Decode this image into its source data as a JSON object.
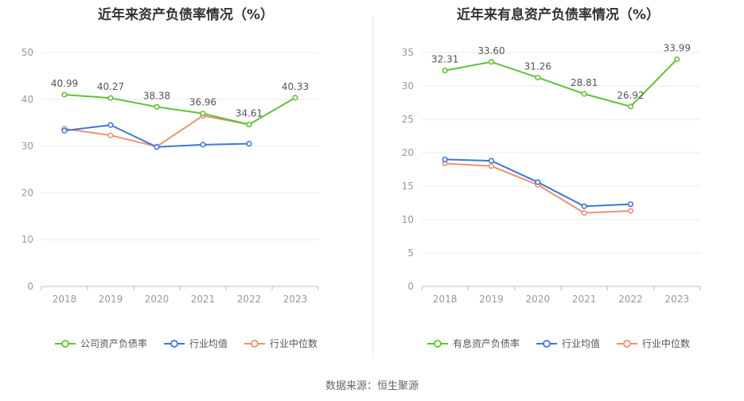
{
  "source": "数据来源：恒生聚源",
  "chart_data": [
    {
      "type": "line",
      "title": "近年来资产负债率情况（%）",
      "x": [
        "2018",
        "2019",
        "2020",
        "2021",
        "2022",
        "2023"
      ],
      "ylim": [
        0,
        50
      ],
      "yticks": [
        0,
        10,
        20,
        30,
        40,
        50
      ],
      "grid": true,
      "legend_position": "bottom",
      "series": [
        {
          "name": "公司资产负债率",
          "color": "#5cc433",
          "values": [
            40.99,
            40.27,
            38.38,
            36.96,
            34.61,
            40.33
          ],
          "labels": [
            "40.99",
            "40.27",
            "38.38",
            "36.96",
            "34.61",
            "40.33"
          ]
        },
        {
          "name": "行业均值",
          "color": "#3d77d9",
          "values": [
            33.3,
            34.5,
            29.8,
            30.3,
            30.5,
            null
          ]
        },
        {
          "name": "行业中位数",
          "color": "#f28f6d",
          "values": [
            33.7,
            32.3,
            29.9,
            36.5,
            34.6,
            null
          ]
        }
      ]
    },
    {
      "type": "line",
      "title": "近年来有息资产负债率情况（%）",
      "x": [
        "2018",
        "2019",
        "2020",
        "2021",
        "2022",
        "2023"
      ],
      "ylim": [
        0,
        35
      ],
      "yticks": [
        0,
        5,
        10,
        15,
        20,
        25,
        30,
        35
      ],
      "grid": true,
      "legend_position": "bottom",
      "series": [
        {
          "name": "有息资产负债率",
          "color": "#5cc433",
          "values": [
            32.31,
            33.6,
            31.26,
            28.81,
            26.92,
            33.99
          ],
          "labels": [
            "32.31",
            "33.60",
            "31.26",
            "28.81",
            "26.92",
            "33.99"
          ]
        },
        {
          "name": "行业均值",
          "color": "#3d77d9",
          "values": [
            19.0,
            18.8,
            15.6,
            12.0,
            12.3,
            null
          ]
        },
        {
          "name": "行业中位数",
          "color": "#f28f6d",
          "values": [
            18.4,
            18.0,
            15.2,
            11.0,
            11.3,
            null
          ]
        }
      ]
    }
  ]
}
